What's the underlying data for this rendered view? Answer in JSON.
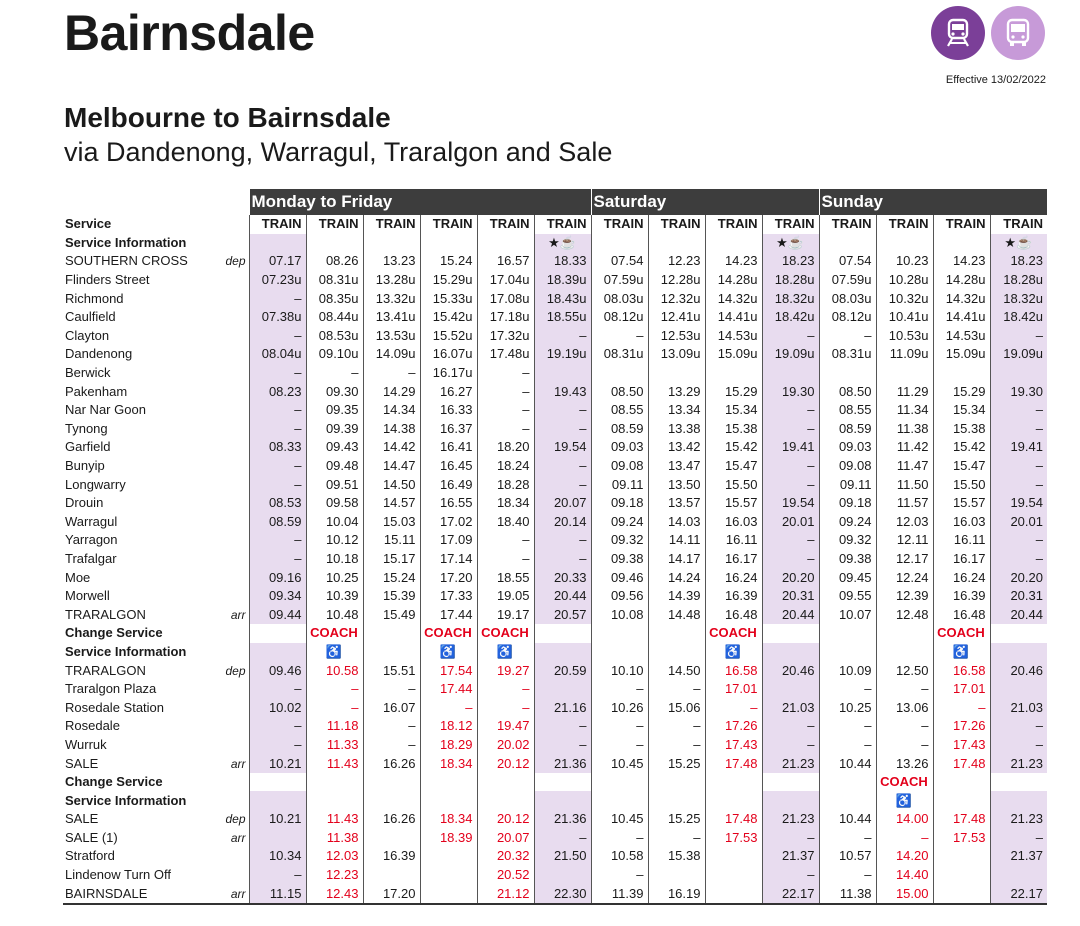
{
  "header": {
    "title": "Bairnsdale",
    "effective": "Effective 13/02/2022",
    "train_icon": "train-icon",
    "bus_icon": "bus-icon"
  },
  "route": {
    "title": "Melbourne to Bairnsdale",
    "via": "via Dandenong, Warragul, Traralgon and Sale"
  },
  "days": [
    "Monday to Friday",
    "Saturday",
    "Sunday"
  ],
  "day_spans": [
    6,
    4,
    4
  ],
  "rows": [
    {
      "label": "Service",
      "bold": true,
      "type": "service",
      "cells": [
        "TRAIN",
        "TRAIN",
        "TRAIN",
        "TRAIN",
        "TRAIN",
        "TRAIN",
        "TRAIN",
        "TRAIN",
        "TRAIN",
        "TRAIN",
        "TRAIN",
        "TRAIN",
        "TRAIN",
        "TRAIN"
      ]
    },
    {
      "label": "Service Information",
      "bold": true,
      "type": "info",
      "cells": [
        "",
        "",
        "",
        "",
        "",
        "★☕",
        "",
        "",
        "",
        "★☕",
        "",
        "",
        "",
        "★☕"
      ]
    },
    {
      "label": "SOUTHERN CROSS",
      "suffix": "dep",
      "cells": [
        "07.17",
        "08.26",
        "13.23",
        "15.24",
        "16.57",
        "18.33",
        "07.54",
        "12.23",
        "14.23",
        "18.23",
        "07.54",
        "10.23",
        "14.23",
        "18.23"
      ]
    },
    {
      "label": "Flinders Street",
      "cells": [
        "07.23u",
        "08.31u",
        "13.28u",
        "15.29u",
        "17.04u",
        "18.39u",
        "07.59u",
        "12.28u",
        "14.28u",
        "18.28u",
        "07.59u",
        "10.28u",
        "14.28u",
        "18.28u"
      ]
    },
    {
      "label": "Richmond",
      "cells": [
        "–",
        "08.35u",
        "13.32u",
        "15.33u",
        "17.08u",
        "18.43u",
        "08.03u",
        "12.32u",
        "14.32u",
        "18.32u",
        "08.03u",
        "10.32u",
        "14.32u",
        "18.32u"
      ]
    },
    {
      "label": "Caulfield",
      "cells": [
        "07.38u",
        "08.44u",
        "13.41u",
        "15.42u",
        "17.18u",
        "18.55u",
        "08.12u",
        "12.41u",
        "14.41u",
        "18.42u",
        "08.12u",
        "10.41u",
        "14.41u",
        "18.42u"
      ]
    },
    {
      "label": "Clayton",
      "cells": [
        "–",
        "08.53u",
        "13.53u",
        "15.52u",
        "17.32u",
        "–",
        "–",
        "12.53u",
        "14.53u",
        "–",
        "–",
        "10.53u",
        "14.53u",
        "–"
      ]
    },
    {
      "label": "Dandenong",
      "cells": [
        "08.04u",
        "09.10u",
        "14.09u",
        "16.07u",
        "17.48u",
        "19.19u",
        "08.31u",
        "13.09u",
        "15.09u",
        "19.09u",
        "08.31u",
        "11.09u",
        "15.09u",
        "19.09u"
      ]
    },
    {
      "label": "Berwick",
      "cells": [
        "–",
        "–",
        "–",
        "16.17u",
        "–",
        "",
        "",
        "",
        "",
        "",
        "",
        "",
        "",
        ""
      ]
    },
    {
      "label": "Pakenham",
      "cells": [
        "08.23",
        "09.30",
        "14.29",
        "16.27",
        "–",
        "19.43",
        "08.50",
        "13.29",
        "15.29",
        "19.30",
        "08.50",
        "11.29",
        "15.29",
        "19.30"
      ]
    },
    {
      "label": "Nar Nar Goon",
      "cells": [
        "–",
        "09.35",
        "14.34",
        "16.33",
        "–",
        "–",
        "08.55",
        "13.34",
        "15.34",
        "–",
        "08.55",
        "11.34",
        "15.34",
        "–"
      ]
    },
    {
      "label": "Tynong",
      "cells": [
        "–",
        "09.39",
        "14.38",
        "16.37",
        "–",
        "–",
        "08.59",
        "13.38",
        "15.38",
        "–",
        "08.59",
        "11.38",
        "15.38",
        "–"
      ]
    },
    {
      "label": "Garfield",
      "cells": [
        "08.33",
        "09.43",
        "14.42",
        "16.41",
        "18.20",
        "19.54",
        "09.03",
        "13.42",
        "15.42",
        "19.41",
        "09.03",
        "11.42",
        "15.42",
        "19.41"
      ]
    },
    {
      "label": "Bunyip",
      "cells": [
        "–",
        "09.48",
        "14.47",
        "16.45",
        "18.24",
        "–",
        "09.08",
        "13.47",
        "15.47",
        "–",
        "09.08",
        "11.47",
        "15.47",
        "–"
      ]
    },
    {
      "label": "Longwarry",
      "cells": [
        "–",
        "09.51",
        "14.50",
        "16.49",
        "18.28",
        "–",
        "09.11",
        "13.50",
        "15.50",
        "–",
        "09.11",
        "11.50",
        "15.50",
        "–"
      ]
    },
    {
      "label": "Drouin",
      "cells": [
        "08.53",
        "09.58",
        "14.57",
        "16.55",
        "18.34",
        "20.07",
        "09.18",
        "13.57",
        "15.57",
        "19.54",
        "09.18",
        "11.57",
        "15.57",
        "19.54"
      ]
    },
    {
      "label": "Warragul",
      "cells": [
        "08.59",
        "10.04",
        "15.03",
        "17.02",
        "18.40",
        "20.14",
        "09.24",
        "14.03",
        "16.03",
        "20.01",
        "09.24",
        "12.03",
        "16.03",
        "20.01"
      ]
    },
    {
      "label": "Yarragon",
      "cells": [
        "–",
        "10.12",
        "15.11",
        "17.09",
        "–",
        "–",
        "09.32",
        "14.11",
        "16.11",
        "–",
        "09.32",
        "12.11",
        "16.11",
        "–"
      ]
    },
    {
      "label": "Trafalgar",
      "cells": [
        "–",
        "10.18",
        "15.17",
        "17.14",
        "–",
        "–",
        "09.38",
        "14.17",
        "16.17",
        "–",
        "09.38",
        "12.17",
        "16.17",
        "–"
      ]
    },
    {
      "label": "Moe",
      "cells": [
        "09.16",
        "10.25",
        "15.24",
        "17.20",
        "18.55",
        "20.33",
        "09.46",
        "14.24",
        "16.24",
        "20.20",
        "09.45",
        "12.24",
        "16.24",
        "20.20"
      ]
    },
    {
      "label": "Morwell",
      "cells": [
        "09.34",
        "10.39",
        "15.39",
        "17.33",
        "19.05",
        "20.44",
        "09.56",
        "14.39",
        "16.39",
        "20.31",
        "09.55",
        "12.39",
        "16.39",
        "20.31"
      ]
    },
    {
      "label": "TRARALGON",
      "suffix": "arr",
      "cells": [
        "09.44",
        "10.48",
        "15.49",
        "17.44",
        "19.17",
        "20.57",
        "10.08",
        "14.48",
        "16.48",
        "20.44",
        "10.07",
        "12.48",
        "16.48",
        "20.44"
      ]
    },
    {
      "label": "Change Service",
      "bold": true,
      "type": "change",
      "cells": [
        "",
        "COACH",
        "",
        "COACH",
        "COACH",
        "",
        "",
        "",
        "COACH",
        "",
        "",
        "",
        "COACH",
        ""
      ]
    },
    {
      "label": "Service Information",
      "bold": true,
      "type": "info",
      "cells": [
        "",
        "♿",
        "",
        "♿",
        "♿",
        "",
        "",
        "",
        "♿",
        "",
        "",
        "",
        "♿",
        ""
      ]
    },
    {
      "label": "TRARALGON",
      "suffix": "dep",
      "cells": [
        "09.46",
        "10.58",
        "15.51",
        "17.54",
        "19.27",
        "20.59",
        "10.10",
        "14.50",
        "16.58",
        "20.46",
        "10.09",
        "12.50",
        "16.58",
        "20.46"
      ],
      "red": [
        1,
        3,
        4,
        8,
        12
      ]
    },
    {
      "label": "Traralgon Plaza",
      "cells": [
        "–",
        "–",
        "–",
        "17.44",
        "–",
        "",
        "–",
        "–",
        "17.01",
        "",
        "–",
        "–",
        "17.01",
        ""
      ],
      "red": [
        1,
        3,
        4,
        8,
        12
      ]
    },
    {
      "label": "Rosedale Station",
      "cells": [
        "10.02",
        "–",
        "16.07",
        "–",
        "–",
        "21.16",
        "10.26",
        "15.06",
        "–",
        "21.03",
        "10.25",
        "13.06",
        "–",
        "21.03"
      ],
      "red": [
        1,
        3,
        4,
        8,
        12
      ]
    },
    {
      "label": "Rosedale",
      "cells": [
        "–",
        "11.18",
        "–",
        "18.12",
        "19.47",
        "–",
        "–",
        "–",
        "17.26",
        "–",
        "–",
        "–",
        "17.26",
        "–"
      ],
      "red": [
        1,
        3,
        4,
        8,
        12
      ]
    },
    {
      "label": "Wurruk",
      "cells": [
        "–",
        "11.33",
        "–",
        "18.29",
        "20.02",
        "–",
        "–",
        "–",
        "17.43",
        "–",
        "–",
        "–",
        "17.43",
        "–"
      ],
      "red": [
        1,
        3,
        4,
        8,
        12
      ]
    },
    {
      "label": "SALE",
      "suffix": "arr",
      "cells": [
        "10.21",
        "11.43",
        "16.26",
        "18.34",
        "20.12",
        "21.36",
        "10.45",
        "15.25",
        "17.48",
        "21.23",
        "10.44",
        "13.26",
        "17.48",
        "21.23"
      ],
      "red": [
        1,
        3,
        4,
        8,
        12
      ]
    },
    {
      "label": "Change Service",
      "bold": true,
      "type": "change",
      "cells": [
        "",
        "",
        "",
        "",
        "",
        "",
        "",
        "",
        "",
        "",
        "",
        "COACH",
        "",
        ""
      ]
    },
    {
      "label": "Service Information",
      "bold": true,
      "type": "info",
      "cells": [
        "",
        "",
        "",
        "",
        "",
        "",
        "",
        "",
        "",
        "",
        "",
        "♿",
        "",
        ""
      ]
    },
    {
      "label": "SALE",
      "suffix": "dep",
      "cells": [
        "10.21",
        "11.43",
        "16.26",
        "18.34",
        "20.12",
        "21.36",
        "10.45",
        "15.25",
        "17.48",
        "21.23",
        "10.44",
        "14.00",
        "17.48",
        "21.23"
      ],
      "red": [
        1,
        3,
        4,
        8,
        11,
        12
      ]
    },
    {
      "label": "SALE (1)",
      "suffix": "arr",
      "cells": [
        "",
        "11.38",
        "",
        "18.39",
        "20.07",
        "–",
        "–",
        "–",
        "17.53",
        "–",
        "–",
        "–",
        "17.53",
        "–"
      ],
      "red": [
        1,
        3,
        4,
        8,
        11,
        12
      ]
    },
    {
      "label": "Stratford",
      "cells": [
        "10.34",
        "12.03",
        "16.39",
        "",
        "20.32",
        "21.50",
        "10.58",
        "15.38",
        "",
        "21.37",
        "10.57",
        "14.20",
        "",
        "21.37"
      ],
      "red": [
        1,
        3,
        4,
        8,
        11,
        12
      ]
    },
    {
      "label": "Lindenow Turn Off",
      "cells": [
        "–",
        "12.23",
        "",
        "",
        "20.52",
        "",
        "–",
        "",
        "",
        "–",
        "–",
        "14.40",
        "",
        ""
      ],
      "red": [
        1,
        3,
        4,
        8,
        11,
        12
      ]
    },
    {
      "label": "BAIRNSDALE",
      "suffix": "arr",
      "last": true,
      "cells": [
        "11.15",
        "12.43",
        "17.20",
        "",
        "21.12",
        "22.30",
        "11.39",
        "16.19",
        "",
        "22.17",
        "11.38",
        "15.00",
        "",
        "22.17"
      ],
      "red": [
        1,
        3,
        4,
        8,
        11,
        12
      ]
    }
  ]
}
